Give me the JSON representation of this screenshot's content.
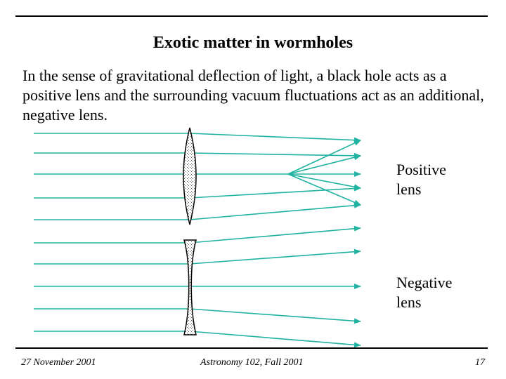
{
  "slide": {
    "title": "Exotic matter in wormholes",
    "body": "In the sense of gravitational deflection of light, a black hole acts as a positive lens and the surrounding vacuum fluctuations act as an additional, negative lens."
  },
  "labels": {
    "positive_lens": "Positive lens",
    "negative_lens": "Negative lens"
  },
  "footer": {
    "date": "27 November 2001",
    "course": "Astronomy 102, Fall 2001",
    "page": "17"
  },
  "colors": {
    "ray": "#20b2a0",
    "lens_outline": "#000000",
    "lens_fill": "#d8d8d8",
    "rule": "#000000"
  }
}
